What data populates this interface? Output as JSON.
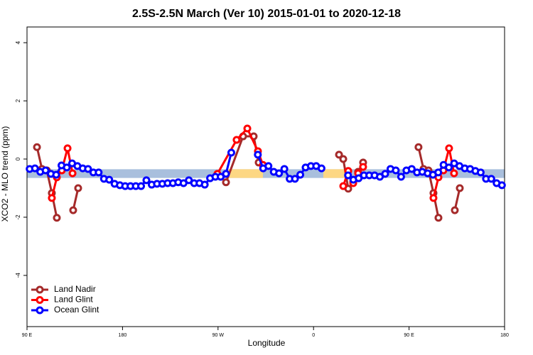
{
  "chart_data": {
    "type": "line",
    "title": "2.5S-2.5N March (Ver 10)   2015-01-01 to 2020-12-18",
    "x_label": "Longitude",
    "y_label": "XCO2 - MLO trend (ppm)",
    "xlim": [
      90,
      540
    ],
    "ylim": [
      -5.76,
      4.54
    ],
    "xticks": [
      {
        "value": 90,
        "label": "90 E"
      },
      180,
      {
        "value": 270,
        "label": "90 W"
      },
      {
        "value": 360,
        "label": "0"
      },
      {
        "value": 450,
        "label": "90 E"
      },
      {
        "value": 540,
        "label": "180"
      }
    ],
    "yticks": [
      -4,
      -2,
      0,
      2,
      4
    ],
    "legend": "bottom-left",
    "bands": [
      {
        "color": "#a9bfdd",
        "xlim": [
          90,
          540
        ],
        "ylim": [
          -0.65,
          -0.35
        ]
      },
      {
        "color": "#fdd783",
        "xlim": [
          277.5,
          312.3
        ],
        "ylim": [
          -0.65,
          -0.35
        ]
      },
      {
        "color": "#fdd783",
        "xlim": [
          369.2,
          392.7
        ],
        "ylim": [
          -0.65,
          -0.35
        ]
      }
    ],
    "series": [
      {
        "name": "Land Nadir",
        "color": "#a52a2a",
        "x": [
          99.4,
          104.1,
          108.7,
          113.4,
          118.1,
          null,
          133.5,
          138.2,
          null,
          277.5,
          293.6,
          303.6,
          308.3,
          null,
          384.0,
          388.0,
          392.7,
          397.4,
          402.0,
          406.7,
          null,
          458.9,
          463.6,
          468.3,
          473.0,
          477.7,
          null,
          493.1,
          497.8
        ],
        "values": [
          0.41,
          -0.34,
          -0.39,
          -1.17,
          -2.02,
          null,
          -1.76,
          -1.0,
          null,
          -0.8,
          0.78,
          0.78,
          -0.12,
          null,
          0.15,
          0.0,
          -1.02,
          -0.78,
          -0.44,
          -0.12,
          null,
          0.41,
          -0.34,
          -0.39,
          -1.17,
          -2.02,
          null,
          -1.76,
          -1.0
        ]
      },
      {
        "name": "Land Glint",
        "color": "#ff0000",
        "x": [
          113.4,
          118.1,
          122.8,
          128.2,
          132.9,
          null,
          269.4,
          287.5,
          297.6,
          307.6,
          312.3,
          null,
          388.0,
          392.7,
          397.4,
          402.0,
          406.7,
          null,
          473.0,
          477.7,
          482.4,
          487.7,
          492.4
        ],
        "values": [
          -1.34,
          -0.63,
          -0.39,
          0.37,
          -0.49,
          null,
          -0.51,
          0.66,
          1.05,
          0.27,
          -0.2,
          null,
          -0.93,
          -0.41,
          -0.83,
          -0.49,
          -0.27,
          null,
          -1.34,
          -0.63,
          -0.39,
          0.37,
          -0.49
        ]
      },
      {
        "name": "Ocean Glint",
        "color": "#0000ff",
        "x": [
          92.5,
          97.5,
          102.5,
          107.5,
          112.5,
          117.5,
          122.5,
          127.5,
          132.5,
          137.5,
          142.5,
          147.5,
          152.5,
          157.5,
          162.5,
          167.5,
          172.5,
          177.5,
          182.5,
          187.5,
          192.5,
          197.5,
          202.5,
          207.5,
          212.5,
          217.5,
          222.5,
          227.5,
          232.5,
          237.5,
          242.5,
          247.5,
          252.5,
          257.5,
          262.5,
          267.5,
          272.5,
          277.5,
          282.5,
          287.5,
          292.5,
          297.5,
          302.5,
          307.5,
          312.5,
          317.5,
          322.5,
          327.5,
          332.5,
          337.5,
          342.5,
          347.5,
          352.5,
          357.5,
          362.5,
          367.5,
          372.5,
          377.5,
          382.5,
          387.5,
          392.5,
          397.5,
          402.5,
          407.5,
          412.5,
          417.5,
          422.5,
          427.5,
          432.5,
          437.5,
          442.5,
          447.5,
          452.5,
          457.5,
          462.5,
          467.5,
          472.5,
          477.5,
          482.5,
          487.5,
          492.5,
          497.5,
          502.5,
          507.5,
          512.5,
          517.5,
          522.5,
          527.5,
          532.5,
          537.5
        ],
        "values": [
          -0.34,
          -0.32,
          -0.44,
          -0.39,
          -0.51,
          -0.54,
          -0.22,
          -0.29,
          -0.15,
          -0.24,
          -0.32,
          -0.34,
          -0.46,
          -0.46,
          -0.68,
          -0.71,
          -0.85,
          -0.9,
          -0.93,
          -0.93,
          -0.93,
          -0.93,
          -0.73,
          -0.88,
          -0.85,
          -0.85,
          -0.83,
          -0.83,
          -0.8,
          -0.83,
          -0.73,
          -0.83,
          -0.83,
          -0.88,
          -0.66,
          -0.61,
          -0.61,
          -0.51,
          0.22,
          null,
          null,
          null,
          null,
          0.15,
          -0.32,
          -0.24,
          -0.44,
          -0.49,
          -0.34,
          -0.68,
          -0.68,
          -0.54,
          -0.29,
          -0.24,
          -0.24,
          -0.32,
          null,
          null,
          null,
          null,
          -0.56,
          -0.71,
          -0.66,
          -0.56,
          -0.56,
          -0.56,
          -0.61,
          -0.51,
          -0.34,
          -0.39,
          -0.61,
          -0.39,
          -0.34,
          -0.46,
          -0.44,
          -0.49,
          -0.54,
          -0.46,
          -0.2,
          -0.29,
          -0.15,
          -0.24,
          -0.32,
          -0.34,
          -0.41,
          -0.46,
          -0.68,
          -0.68,
          -0.83,
          -0.9
        ]
      }
    ]
  }
}
